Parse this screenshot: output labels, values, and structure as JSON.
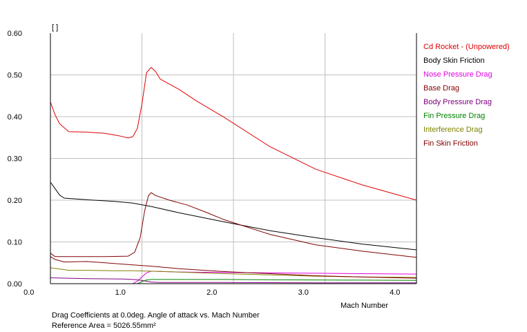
{
  "chart_data": {
    "type": "line",
    "title": "",
    "xlabel": "Mach Number",
    "ylabel": "[ ]",
    "xlim": [
      0.1,
      4.1
    ],
    "ylim": [
      0,
      0.6
    ],
    "x_ticks": [
      0.0,
      1.0,
      2.0,
      3.0,
      4.0
    ],
    "x_tick_labels": [
      "0.0",
      "1.0",
      "2.0",
      "3.0",
      "4.0"
    ],
    "x_grid": [
      1.1,
      2.1,
      3.1
    ],
    "y_ticks": [
      0,
      0.1,
      0.2,
      0.3,
      0.4,
      0.5,
      0.6
    ],
    "y_tick_labels": [
      "0.00",
      "0.10",
      "0.20",
      "0.30",
      "0.40",
      "0.50",
      "0.60"
    ],
    "y_grid": [
      0.1,
      0.2,
      0.3,
      0.4,
      0.5
    ],
    "grid": true,
    "legend_position": "right",
    "series": [
      {
        "name": "Cd Rocket - (Unpowered)",
        "color": "#e00000",
        "points": [
          [
            0.1,
            0.435
          ],
          [
            0.15,
            0.405
          ],
          [
            0.2,
            0.383
          ],
          [
            0.3,
            0.364
          ],
          [
            0.5,
            0.363
          ],
          [
            0.7,
            0.36
          ],
          [
            0.85,
            0.354
          ],
          [
            0.95,
            0.349
          ],
          [
            1.0,
            0.352
          ],
          [
            1.05,
            0.372
          ],
          [
            1.1,
            0.43
          ],
          [
            1.15,
            0.505
          ],
          [
            1.2,
            0.518
          ],
          [
            1.25,
            0.508
          ],
          [
            1.3,
            0.49
          ],
          [
            1.5,
            0.466
          ],
          [
            1.7,
            0.437
          ],
          [
            2.0,
            0.398
          ],
          [
            2.5,
            0.328
          ],
          [
            3.0,
            0.274
          ],
          [
            3.5,
            0.237
          ],
          [
            4.1,
            0.2
          ]
        ]
      },
      {
        "name": "Body Skin Friction",
        "color": "#000000",
        "points": [
          [
            0.1,
            0.243
          ],
          [
            0.15,
            0.228
          ],
          [
            0.2,
            0.212
          ],
          [
            0.25,
            0.205
          ],
          [
            0.5,
            0.201
          ],
          [
            0.8,
            0.197
          ],
          [
            1.0,
            0.193
          ],
          [
            1.2,
            0.185
          ],
          [
            1.5,
            0.17
          ],
          [
            2.0,
            0.148
          ],
          [
            2.5,
            0.127
          ],
          [
            3.0,
            0.11
          ],
          [
            3.5,
            0.095
          ],
          [
            4.1,
            0.081
          ]
        ]
      },
      {
        "name": "Nose Pressure Drag",
        "color": "#e000e0",
        "points": [
          [
            0.1,
            0
          ],
          [
            1.0,
            0
          ],
          [
            1.05,
            0.006
          ],
          [
            1.1,
            0.016
          ],
          [
            1.15,
            0.026
          ],
          [
            1.2,
            0.03
          ],
          [
            1.5,
            0.028
          ],
          [
            2.0,
            0.027
          ],
          [
            3.0,
            0.025
          ],
          [
            4.1,
            0.023
          ]
        ]
      },
      {
        "name": "Base Drag",
        "color": "#800000",
        "points": [
          [
            0.1,
            0.073
          ],
          [
            0.15,
            0.065
          ],
          [
            0.3,
            0.065
          ],
          [
            0.7,
            0.065
          ],
          [
            0.95,
            0.066
          ],
          [
            1.02,
            0.075
          ],
          [
            1.08,
            0.11
          ],
          [
            1.13,
            0.175
          ],
          [
            1.17,
            0.21
          ],
          [
            1.2,
            0.218
          ],
          [
            1.25,
            0.211
          ],
          [
            1.4,
            0.2
          ],
          [
            1.6,
            0.188
          ],
          [
            1.8,
            0.171
          ],
          [
            2.0,
            0.153
          ],
          [
            2.5,
            0.118
          ],
          [
            3.0,
            0.093
          ],
          [
            3.5,
            0.078
          ],
          [
            4.1,
            0.063
          ]
        ]
      },
      {
        "name": "Body Pressure Drag",
        "color": "#800080",
        "points": [
          [
            0.1,
            0.014
          ],
          [
            0.5,
            0.012
          ],
          [
            0.9,
            0.011
          ],
          [
            1.0,
            0.01
          ],
          [
            1.1,
            0.008
          ],
          [
            1.2,
            0.004
          ],
          [
            1.3,
            0.003
          ],
          [
            2.0,
            0.003
          ],
          [
            3.0,
            0.002
          ],
          [
            4.1,
            0.002
          ]
        ]
      },
      {
        "name": "Fin Pressure Drag",
        "color": "#008000",
        "points": [
          [
            0.1,
            0
          ],
          [
            1.05,
            0
          ],
          [
            1.1,
            0.005
          ],
          [
            1.15,
            0.009
          ],
          [
            1.2,
            0.01
          ],
          [
            2.0,
            0.01
          ],
          [
            3.0,
            0.009
          ],
          [
            4.1,
            0.008
          ]
        ]
      },
      {
        "name": "Interference Drag",
        "color": "#808000",
        "points": [
          [
            0.1,
            0.038
          ],
          [
            0.2,
            0.035
          ],
          [
            0.3,
            0.032
          ],
          [
            0.5,
            0.032
          ],
          [
            0.8,
            0.031
          ],
          [
            1.0,
            0.031
          ],
          [
            1.2,
            0.03
          ],
          [
            1.5,
            0.028
          ],
          [
            2.0,
            0.024
          ],
          [
            2.5,
            0.021
          ],
          [
            3.0,
            0.018
          ],
          [
            3.5,
            0.016
          ],
          [
            4.1,
            0.015
          ]
        ]
      },
      {
        "name": "Fin Skin Friction",
        "color": "#800000",
        "points": [
          [
            0.1,
            0.065
          ],
          [
            0.15,
            0.058
          ],
          [
            0.25,
            0.052
          ],
          [
            0.5,
            0.053
          ],
          [
            0.7,
            0.05
          ],
          [
            1.0,
            0.045
          ],
          [
            1.2,
            0.042
          ],
          [
            1.5,
            0.036
          ],
          [
            2.0,
            0.029
          ],
          [
            2.5,
            0.024
          ],
          [
            3.0,
            0.019
          ],
          [
            3.5,
            0.016
          ],
          [
            4.1,
            0.013
          ]
        ]
      }
    ]
  },
  "caption": {
    "line1": "Drag Coefficients at 0.0deg. Angle of attack vs. Mach Number",
    "line2": "Reference Area =  5026.55mm²"
  },
  "colors": {
    "background": "#ffffff",
    "axis": "#000000",
    "grid": "#c0c0c0"
  }
}
